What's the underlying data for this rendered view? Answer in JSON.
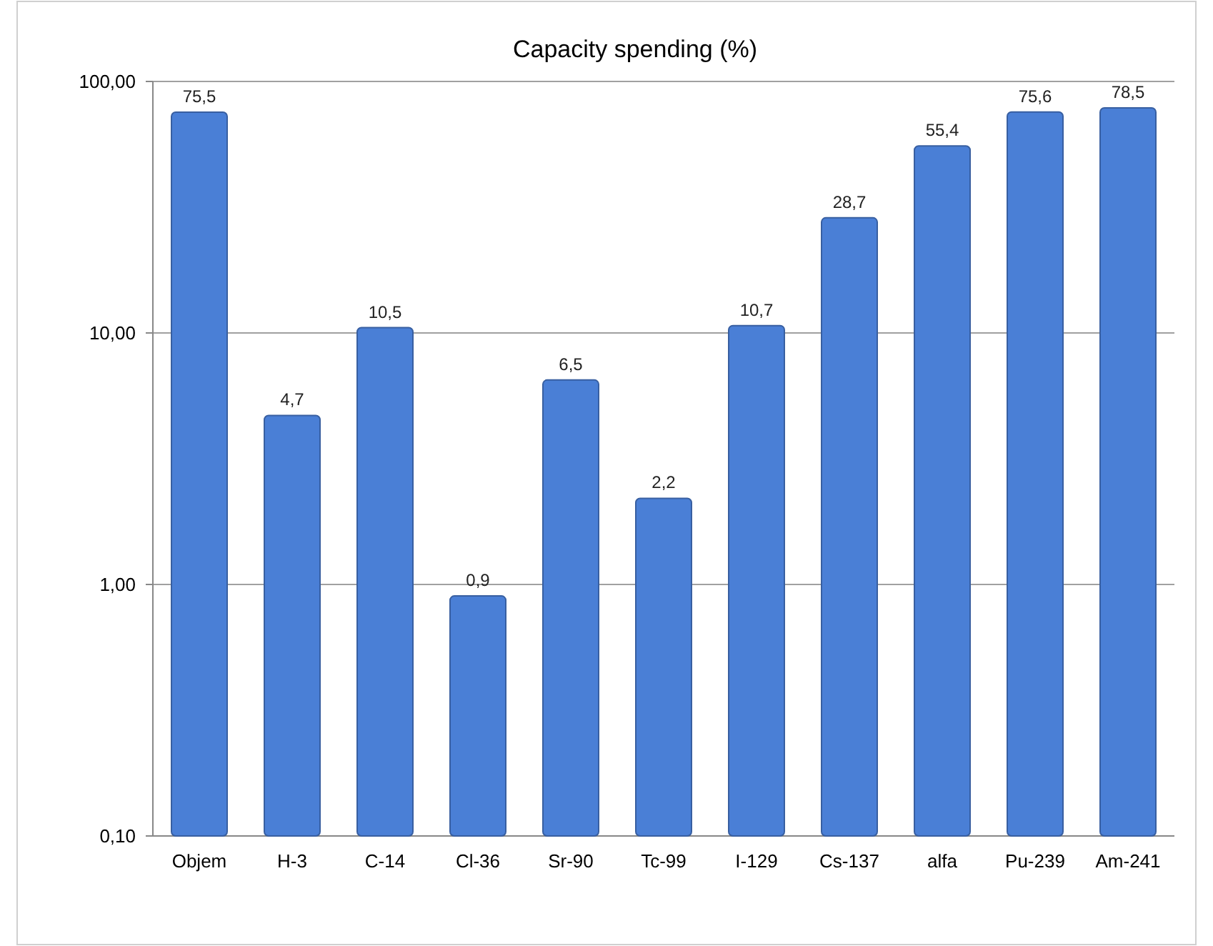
{
  "chart_data": {
    "type": "bar",
    "title": "Capacity spending (%)",
    "categories": [
      "Objem",
      "H-3",
      "C-14",
      "Cl-36",
      "Sr-90",
      "Tc-99",
      "I-129",
      "Cs-137",
      "alfa",
      "Pu-239",
      "Am-241"
    ],
    "values": [
      75.5,
      4.7,
      10.5,
      0.9,
      6.5,
      2.2,
      10.7,
      28.7,
      55.4,
      75.6,
      78.5
    ],
    "value_labels": [
      "75,5",
      "4,7",
      "10,5",
      "0,9",
      "6,5",
      "2,2",
      "10,7",
      "28,7",
      "55,4",
      "75,6",
      "78,5"
    ],
    "color": "#4a7fd6",
    "log": true,
    "ylim": [
      0.1,
      100
    ],
    "yticks": [
      {
        "value": 0.1,
        "label": "0,10"
      },
      {
        "value": 1,
        "label": "1,00"
      },
      {
        "value": 10,
        "label": "10,00"
      },
      {
        "value": 100,
        "label": "100,00"
      }
    ],
    "grid": "y"
  }
}
